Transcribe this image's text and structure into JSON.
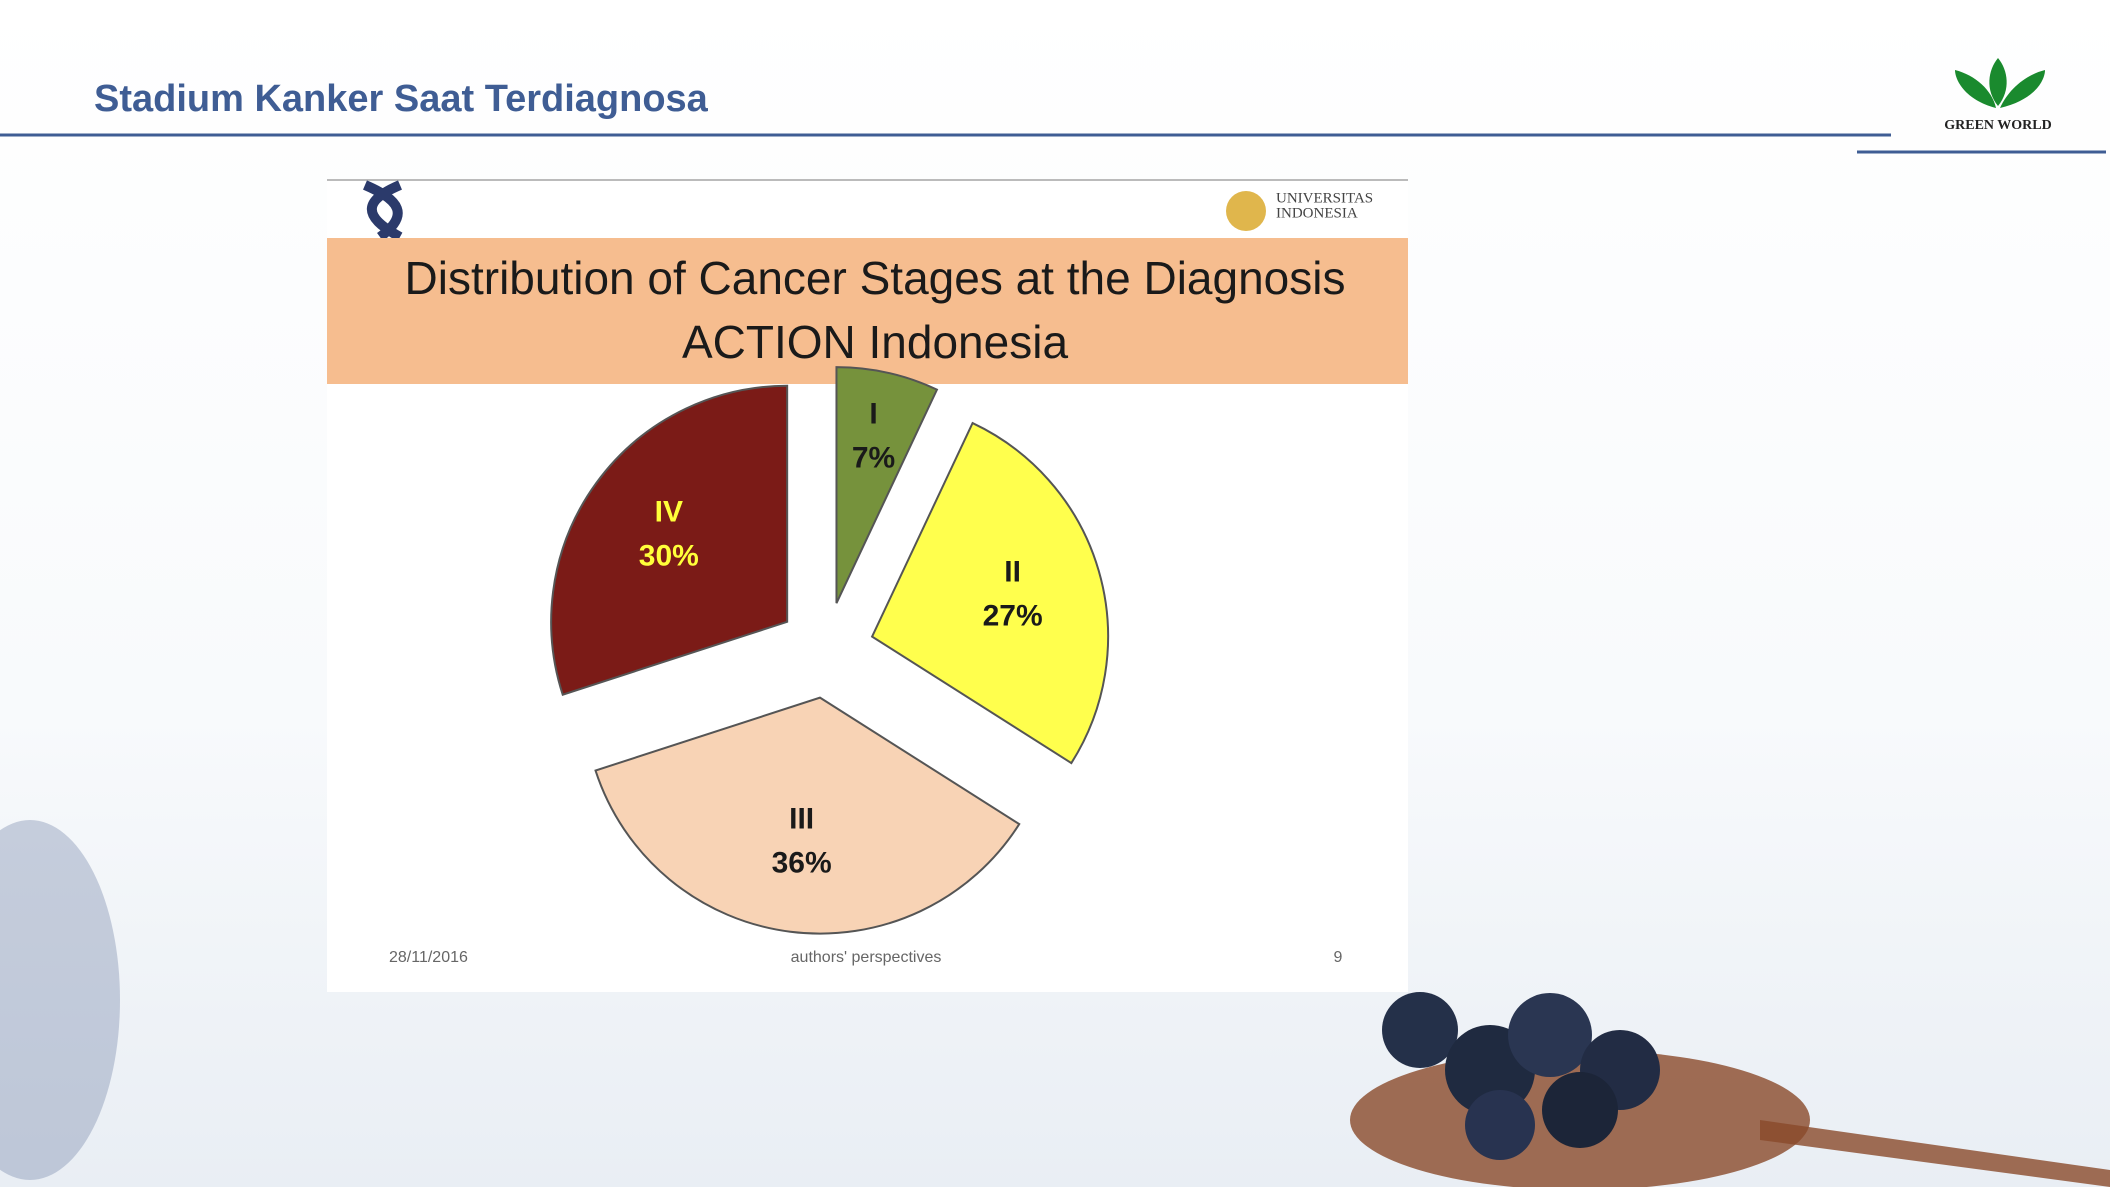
{
  "slide_title": "Stadium Kanker Saat Terdiagnosa",
  "logo_text": "GREEN WORLD",
  "inner_slide": {
    "university_line1": "UNIVERSITAS",
    "university_line2": "INDONESIA",
    "footer_date": "28/11/2016",
    "footer_text": "authors' perspectives",
    "footer_page": "9"
  },
  "chart_data": {
    "type": "pie",
    "title": "Distribution of Cancer Stages at the Diagnosis",
    "subtitle": "ACTION Indonesia",
    "categories": [
      "I",
      "II",
      "III",
      "IV"
    ],
    "values": [
      7,
      27,
      36,
      30
    ],
    "value_labels": [
      "7%",
      "27%",
      "36%",
      "30%"
    ],
    "colors": [
      "#76923c",
      "#ffff4d",
      "#f8d3b5",
      "#7b1b17"
    ],
    "label_colors": [
      "#1a1a1a",
      "#1a1a1a",
      "#1a1a1a",
      "#ffff3a"
    ]
  }
}
